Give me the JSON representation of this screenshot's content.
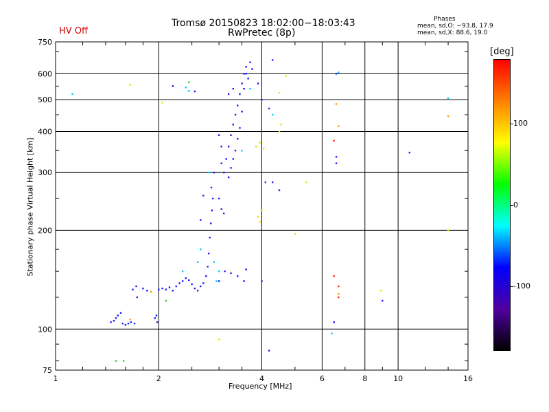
{
  "header": {
    "title": "Tromsø 20150823 18:02:00−18:03:43",
    "subtitle": "RwPretec (8p)",
    "status": "HV Off",
    "phase_title": "Phases",
    "phase_o": "mean, sd,O: −93.8, 17.9",
    "phase_x": "mean, sd,X:  88.6, 19.0"
  },
  "colors": {
    "status": "#d40000",
    "colorbar_stops": [
      "#000000",
      "#5000a0",
      "#0000ff",
      "#00ffff",
      "#00ff00",
      "#ffff00",
      "#ff8000",
      "#ff0000"
    ]
  },
  "chart_data": {
    "type": "scatter",
    "xlabel": "Frequency [MHz]",
    "ylabel": "Stationary phase Virtual Height [km]",
    "x_scale": "log",
    "y_scale": "log",
    "xlim": [
      1,
      16
    ],
    "ylim": [
      75,
      750
    ],
    "x_ticks": [
      1,
      2,
      4,
      6,
      8,
      10,
      16
    ],
    "y_ticks": [
      75,
      100,
      200,
      300,
      400,
      500,
      600,
      750
    ],
    "grid": true,
    "colorbar": {
      "label": "[deg]",
      "range": [
        -180,
        180
      ],
      "ticks": [
        100,
        0,
        -100
      ]
    },
    "series": [
      {
        "color": "blue",
        "points": [
          [
            1.45,
            105
          ],
          [
            1.48,
            106
          ],
          [
            1.5,
            108
          ],
          [
            1.52,
            110
          ],
          [
            1.55,
            112
          ],
          [
            1.57,
            104
          ],
          [
            1.6,
            103
          ],
          [
            1.63,
            104
          ],
          [
            1.66,
            105
          ],
          [
            1.7,
            104
          ],
          [
            1.68,
            132
          ],
          [
            1.72,
            135
          ],
          [
            1.8,
            133
          ],
          [
            1.85,
            131
          ],
          [
            1.95,
            108
          ],
          [
            1.97,
            110
          ],
          [
            1.98,
            105
          ],
          [
            2.0,
            132
          ],
          [
            2.05,
            133
          ],
          [
            2.1,
            132
          ],
          [
            2.15,
            134
          ],
          [
            2.2,
            131
          ],
          [
            2.25,
            135
          ],
          [
            2.3,
            138
          ],
          [
            2.35,
            140
          ],
          [
            2.4,
            143
          ],
          [
            2.45,
            141
          ],
          [
            2.5,
            137
          ],
          [
            2.55,
            133
          ],
          [
            2.6,
            131
          ],
          [
            2.65,
            135
          ],
          [
            2.7,
            138
          ],
          [
            2.75,
            145
          ],
          [
            2.78,
            155
          ],
          [
            2.8,
            170
          ],
          [
            2.82,
            190
          ],
          [
            2.84,
            210
          ],
          [
            2.86,
            230
          ],
          [
            2.88,
            250
          ],
          [
            2.85,
            270
          ],
          [
            2.9,
            300
          ],
          [
            2.7,
            255
          ],
          [
            2.65,
            215
          ],
          [
            3.0,
            250
          ],
          [
            3.05,
            232
          ],
          [
            3.1,
            225
          ],
          [
            3.1,
            300
          ],
          [
            3.15,
            330
          ],
          [
            3.2,
            360
          ],
          [
            3.25,
            390
          ],
          [
            3.3,
            420
          ],
          [
            3.35,
            450
          ],
          [
            3.4,
            480
          ],
          [
            3.45,
            520
          ],
          [
            3.5,
            560
          ],
          [
            3.55,
            600
          ],
          [
            3.6,
            630
          ],
          [
            3.7,
            650
          ],
          [
            3.75,
            620
          ],
          [
            3.65,
            580
          ],
          [
            3.55,
            540
          ],
          [
            3.5,
            460
          ],
          [
            3.45,
            410
          ],
          [
            3.4,
            380
          ],
          [
            3.35,
            350
          ],
          [
            3.3,
            330
          ],
          [
            3.25,
            310
          ],
          [
            3.2,
            290
          ],
          [
            3.05,
            320
          ],
          [
            3.05,
            360
          ],
          [
            3.0,
            390
          ],
          [
            3.12,
            150
          ],
          [
            3.25,
            148
          ],
          [
            3.4,
            145
          ],
          [
            3.55,
            140
          ],
          [
            3.6,
            152
          ],
          [
            3.0,
            140
          ],
          [
            3.9,
            560
          ],
          [
            4.0,
            500
          ],
          [
            4.2,
            470
          ],
          [
            4.1,
            280
          ],
          [
            4.3,
            280
          ],
          [
            4.5,
            265
          ],
          [
            3.2,
            520
          ],
          [
            2.55,
            530
          ],
          [
            4.3,
            660
          ],
          [
            3.6,
            600
          ],
          [
            4.0,
            140
          ],
          [
            4.2,
            86
          ],
          [
            6.6,
            335
          ],
          [
            6.6,
            320
          ],
          [
            6.6,
            600
          ],
          [
            6.5,
            105
          ],
          [
            10.8,
            345
          ],
          [
            9.0,
            122
          ],
          [
            2.2,
            550
          ],
          [
            3.3,
            540
          ],
          [
            1.73,
            125
          ]
        ]
      },
      {
        "color": "cyan",
        "points": [
          [
            1.12,
            520
          ],
          [
            2.4,
            545
          ],
          [
            2.45,
            532
          ],
          [
            2.35,
            150
          ],
          [
            2.6,
            160
          ],
          [
            2.65,
            175
          ],
          [
            2.9,
            160
          ],
          [
            2.95,
            140
          ],
          [
            3.0,
            150
          ],
          [
            3.7,
            540
          ],
          [
            4.3,
            450
          ],
          [
            14.0,
            505
          ],
          [
            6.7,
            605
          ],
          [
            3.5,
            350
          ],
          [
            2.8,
            300
          ],
          [
            6.4,
            97
          ]
        ]
      },
      {
        "color": "yellow",
        "points": [
          [
            3.9,
            220
          ],
          [
            3.95,
            212
          ],
          [
            4.0,
            230
          ],
          [
            3.85,
            360
          ],
          [
            3.95,
            370
          ],
          [
            4.05,
            355
          ],
          [
            4.5,
            400
          ],
          [
            4.55,
            420
          ],
          [
            4.7,
            590
          ],
          [
            5.0,
            195
          ],
          [
            5.4,
            280
          ],
          [
            3.0,
            93
          ],
          [
            2.05,
            490
          ],
          [
            1.65,
            555
          ],
          [
            8.9,
            131
          ],
          [
            14.0,
            200
          ],
          [
            4.5,
            525
          ]
        ]
      },
      {
        "color": "orange",
        "points": [
          [
            6.6,
            485
          ],
          [
            6.7,
            415
          ],
          [
            6.7,
            128
          ],
          [
            14.0,
            445
          ],
          [
            1.9,
            130
          ],
          [
            1.65,
            107
          ]
        ]
      },
      {
        "color": "red",
        "points": [
          [
            6.5,
            375
          ],
          [
            6.5,
            145
          ],
          [
            6.7,
            135
          ],
          [
            6.7,
            125
          ]
        ]
      },
      {
        "color": "green",
        "points": [
          [
            1.5,
            80
          ],
          [
            1.58,
            80
          ],
          [
            2.45,
            565
          ],
          [
            2.1,
            122
          ]
        ]
      }
    ]
  }
}
